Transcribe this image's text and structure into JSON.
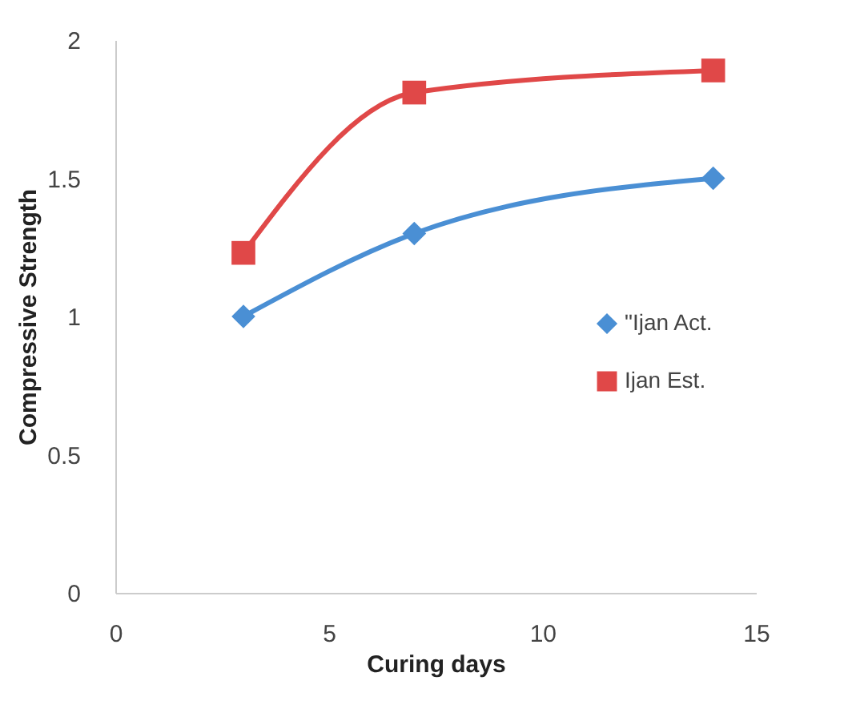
{
  "chart_data": {
    "type": "line",
    "xlabel": "Curing days",
    "ylabel": "Compressive Strength",
    "xlim": [
      0,
      15
    ],
    "xticks": [
      0,
      5,
      10,
      15
    ],
    "ylim": [
      0,
      2
    ],
    "yticks": [
      0,
      0.5,
      1,
      1.5,
      2
    ],
    "grid": false,
    "legend": "right",
    "line_style": "solid",
    "series": [
      {
        "name": "\"Ijan Act.",
        "color": "#4a8fd4",
        "marker": "diamond",
        "x": [
          3,
          7,
          14
        ],
        "values": [
          1.0,
          1.3,
          1.5
        ]
      },
      {
        "name": "Ijan Est.",
        "color": "#e04848",
        "marker": "square",
        "x": [
          3,
          7,
          14
        ],
        "values": [
          1.23,
          1.81,
          1.89
        ]
      }
    ]
  }
}
